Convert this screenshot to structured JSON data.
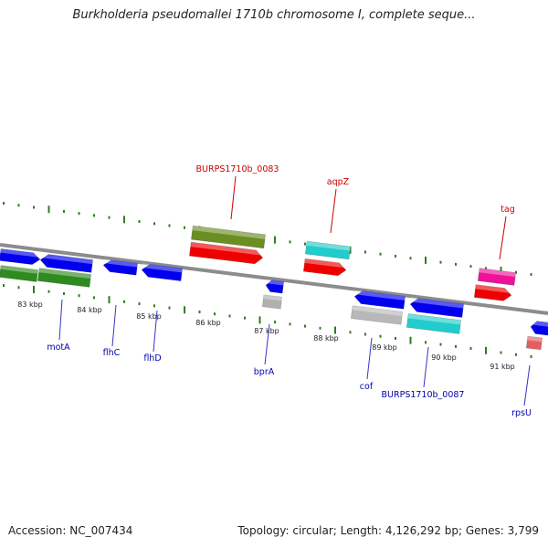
{
  "title": "Burkholderia pseudomallei 1710b chromosome I, complete seque...",
  "accession_text": "Accession: NC_007434",
  "summary_text": "Topology: circular; Length: 4,126,292 bp; Genes: 3,799",
  "colors": {
    "backbone": "#8c8c8c",
    "tick": "#2e7d1f",
    "label_above": "#cc0000",
    "label_below": "#0000b0",
    "callout": "#3333cc",
    "callout_red": "#cc0000"
  },
  "kbp_labels": [
    "83 kbp",
    "84 kbp",
    "85 kbp",
    "86 kbp",
    "87 kbp",
    "88 kbp",
    "89 kbp",
    "90 kbp",
    "91 kbp"
  ],
  "gene_labels": [
    {
      "id": "burps0083",
      "text": "BURPS1710b_0083",
      "side": "above"
    },
    {
      "id": "aqpz",
      "text": "aqpZ",
      "side": "above"
    },
    {
      "id": "tag",
      "text": "tag",
      "side": "above"
    },
    {
      "id": "mota",
      "text": "motA",
      "side": "below"
    },
    {
      "id": "flhc",
      "text": "flhC",
      "side": "below"
    },
    {
      "id": "flhd",
      "text": "flhD",
      "side": "below"
    },
    {
      "id": "bpra",
      "text": "bprA",
      "side": "below"
    },
    {
      "id": "cof",
      "text": "cof",
      "side": "below"
    },
    {
      "id": "burps0087",
      "text": "BURPS1710b_0087",
      "side": "below"
    },
    {
      "id": "rpsu",
      "text": "rpsU",
      "side": "below"
    }
  ],
  "features": [
    {
      "name": "feature-blue-left-top",
      "color": "#0000ee",
      "dir": "right"
    },
    {
      "name": "feature-blue-mota",
      "color": "#0000ee",
      "dir": "left"
    },
    {
      "name": "feature-green-left",
      "color": "#2e8b1f",
      "dir": "none"
    },
    {
      "name": "feature-green-mota",
      "color": "#2e8b1f",
      "dir": "none"
    },
    {
      "name": "feature-blue-flhc",
      "color": "#0000ee",
      "dir": "left"
    },
    {
      "name": "feature-blue-flhd",
      "color": "#0000ee",
      "dir": "left"
    },
    {
      "name": "feature-olive-burps0083",
      "color": "#6b8e23",
      "dir": "none"
    },
    {
      "name": "feature-red-burps0083",
      "color": "#ee0000",
      "dir": "right"
    },
    {
      "name": "feature-blue-bpra",
      "color": "#0000ee",
      "dir": "left"
    },
    {
      "name": "feature-gray-bpra",
      "color": "#b0b0b0",
      "dir": "none"
    },
    {
      "name": "feature-cyan-aqpz",
      "color": "#22cccc",
      "dir": "none"
    },
    {
      "name": "feature-red-aqpz",
      "color": "#ee0000",
      "dir": "right"
    },
    {
      "name": "feature-blue-cof",
      "color": "#0000ee",
      "dir": "left"
    },
    {
      "name": "feature-gray-cof",
      "color": "#b8b8b8",
      "dir": "none"
    },
    {
      "name": "feature-blue-burps0087",
      "color": "#0000ee",
      "dir": "left"
    },
    {
      "name": "feature-cyan-burps0087",
      "color": "#22cccc",
      "dir": "none"
    },
    {
      "name": "feature-magenta-tag",
      "color": "#ee1199",
      "dir": "none"
    },
    {
      "name": "feature-red-tag",
      "color": "#ee0000",
      "dir": "right"
    },
    {
      "name": "feature-blue-rpsu",
      "color": "#0000ee",
      "dir": "left"
    },
    {
      "name": "feature-pink-rpsu",
      "color": "#e06060",
      "dir": "none"
    }
  ]
}
